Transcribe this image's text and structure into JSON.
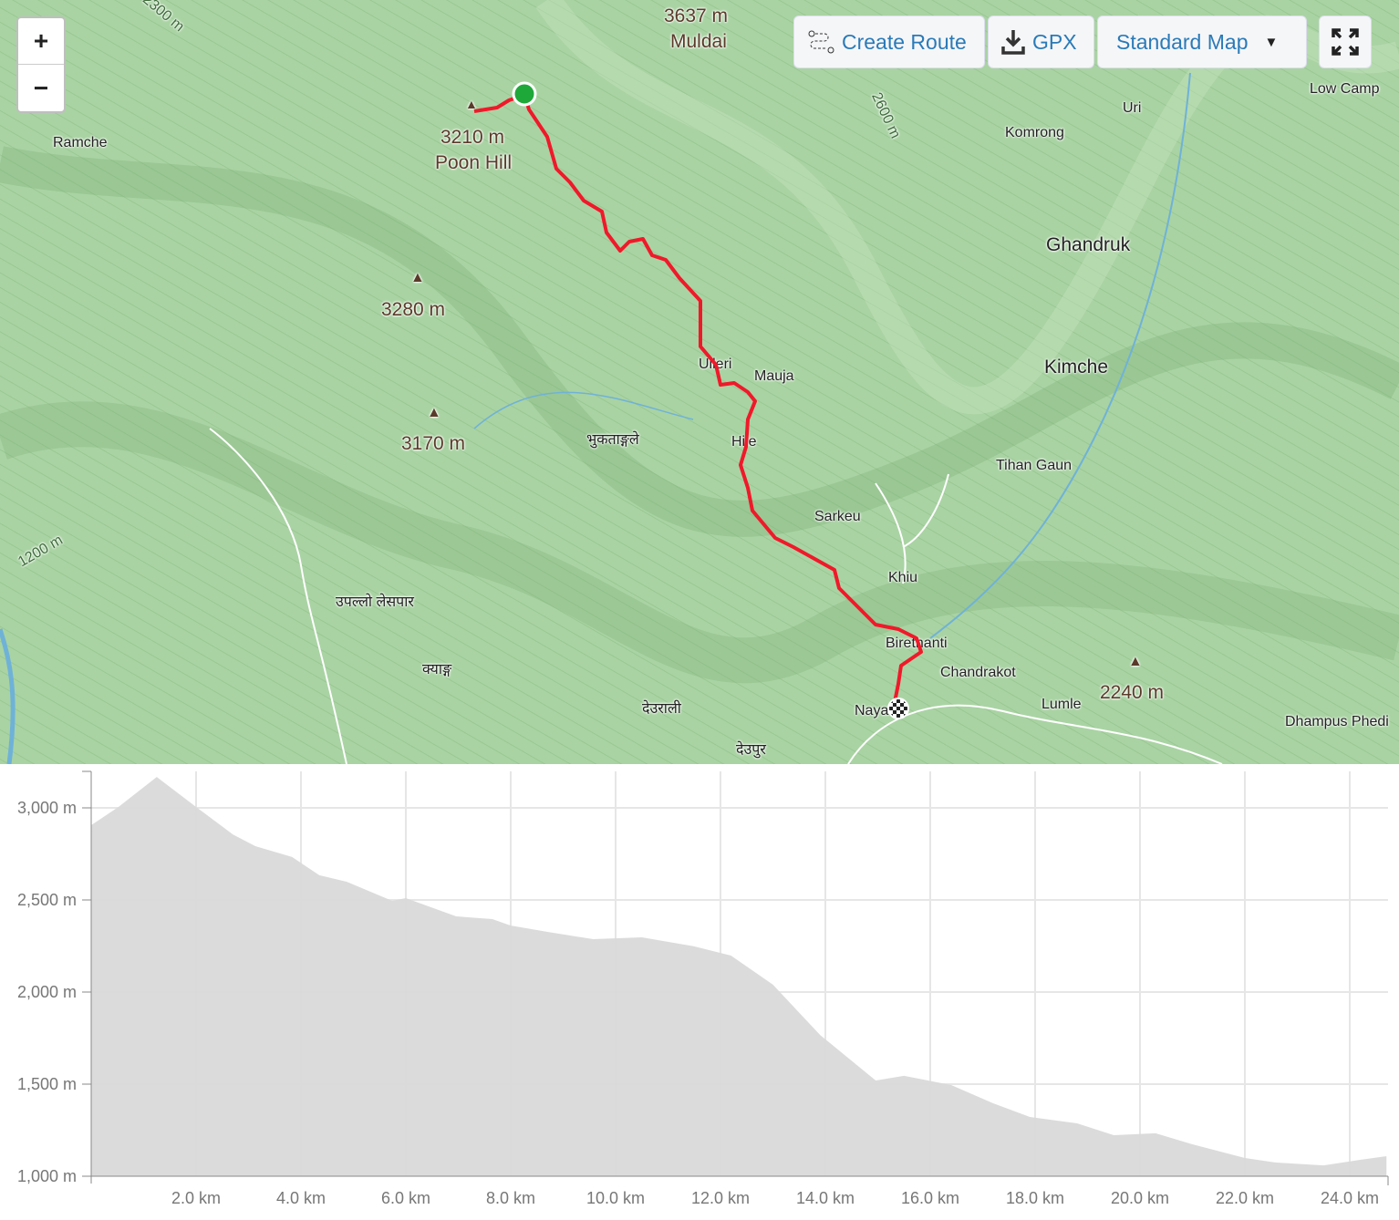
{
  "map": {
    "zoom_in": "+",
    "zoom_out": "−",
    "toolbar": {
      "create_route": "Create Route",
      "gpx": "GPX",
      "map_type": "Standard Map",
      "fullscreen_icon": "expand-icon"
    },
    "labels": {
      "muldai_elev": "3637 m",
      "muldai": "Muldai",
      "poon_elev": "3210 m",
      "poon": "Poon Hill",
      "p3280": "3280 m",
      "p3170": "3170 m",
      "p2240": "2240 m",
      "ramche": "Ramche",
      "komrong": "Komrong",
      "uri": "Uri",
      "low_camp": "Low Camp",
      "ghandruk": "Ghandruk",
      "kimche": "Kimche",
      "ulleri": "Ulleri",
      "mauja": "Mauja",
      "hile": "Hile",
      "tihan": "Tihan Gaun",
      "sarkeu": "Sarkeu",
      "khiu": "Khiu",
      "birethanti": "Birethanti",
      "chandrakot": "Chandrakot",
      "lumle": "Lumle",
      "nayapul": "Naya",
      "dhampus": "Dhampus Phedi",
      "bhuktang": "भुकताङ्गले",
      "upallo": "उपल्लो लेसपार",
      "kyang": "क्याङ्ग",
      "deurali": "देउराली",
      "deupur": "देउपुर",
      "c2300": "2300 m",
      "c2600": "2600 m",
      "c1200": "1200 m"
    },
    "route_color": "#f0192a",
    "start_color": "#1fa83a"
  },
  "chart_data": {
    "type": "area",
    "title": "",
    "xlabel": "",
    "ylabel": "",
    "x_unit": "km",
    "y_unit": "m",
    "xlim": [
      0,
      24.7
    ],
    "ylim": [
      1000,
      3200
    ],
    "x_ticks": [
      "2.0 km",
      "4.0 km",
      "6.0 km",
      "8.0 km",
      "10.0 km",
      "12.0 km",
      "14.0 km",
      "16.0 km",
      "18.0 km",
      "20.0 km",
      "22.0 km",
      "24.0 km"
    ],
    "y_ticks": [
      "1,000 m",
      "1,500 m",
      "2,000 m",
      "2,500 m",
      "3,000 m"
    ],
    "grid": true,
    "fill_color": "#d9d9d9",
    "x": [
      0,
      0.52,
      1.25,
      2.0,
      2.7,
      3.13,
      3.83,
      4.35,
      4.87,
      5.74,
      6.0,
      6.96,
      7.65,
      8.0,
      8.7,
      9.57,
      10.5,
      11.5,
      12.2,
      13.0,
      13.9,
      14.96,
      15.5,
      16.4,
      17.2,
      17.9,
      18.8,
      19.5,
      20.3,
      21.0,
      22.0,
      22.6,
      23.5,
      24.2,
      24.7
    ],
    "y": [
      2906,
      3005,
      3168,
      3005,
      2856,
      2792,
      2733,
      2634,
      2599,
      2495,
      2510,
      2411,
      2396,
      2361,
      2327,
      2287,
      2297,
      2248,
      2198,
      2040,
      1767,
      1520,
      1545,
      1495,
      1396,
      1322,
      1287,
      1223,
      1233,
      1173,
      1099,
      1074,
      1059,
      1089,
      1109
    ]
  }
}
